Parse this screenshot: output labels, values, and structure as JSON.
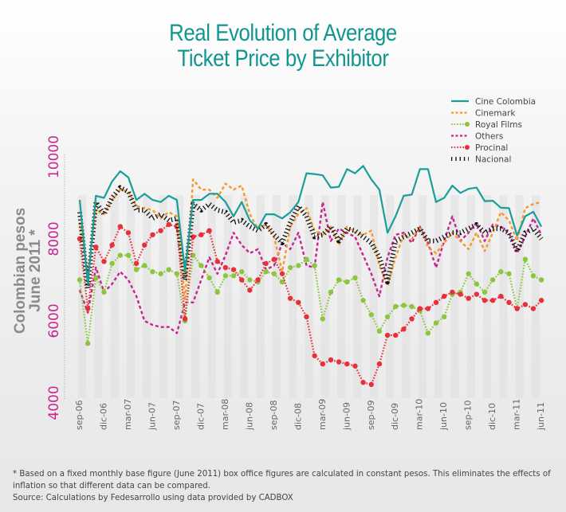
{
  "title": {
    "line1": "Real Evolution of Average",
    "line2": "Ticket Price by Exhibitor"
  },
  "footnote": {
    "line1": "* Based on a fixed monthly base figure (June 2011) box office figures are calculated in constant pesos. This eliminates the effects of",
    "line2": "inflation so that different data can be compared.",
    "source": "Source: Calculations by Fedesarrollo using data provided by CADBOX"
  },
  "colors": {
    "title": "#11968f",
    "tick_label": "#c8238f",
    "axis_title": "#8a8a8a",
    "cine_colombia": "#1a9e9a",
    "cinemark": "#f39a2b",
    "royal_films": "#8cc63f",
    "others": "#c8238f",
    "procinal": "#e8303a",
    "nacional": "#111111"
  },
  "chart_data": {
    "type": "line",
    "title": "Real Evolution of Average Ticket Price by Exhibitor",
    "xlabel": "",
    "ylabel": "Colombian pesos June 2011 *",
    "ylabel_lines": [
      "Colombian pesos",
      "June 2011 *"
    ],
    "ylim": [
      4000,
      10000
    ],
    "yticks": [
      "4000",
      "6000",
      "8000",
      "10000"
    ],
    "ytick_values": [
      4000,
      6000,
      8000,
      10000
    ],
    "legend_position": "top-right",
    "grid": false,
    "x": [
      "sep-06",
      "oct-06",
      "nov-06",
      "dic-06",
      "ene-07",
      "feb-07",
      "mar-07",
      "abr-07",
      "may-07",
      "jun-07",
      "jul-07",
      "ago-07",
      "sep-07",
      "oct-07",
      "nov-07",
      "dic-07",
      "ene-08",
      "feb-08",
      "mar-08",
      "abr-08",
      "may-08",
      "jun-08",
      "jul-08",
      "ago-08",
      "sep-08",
      "oct-08",
      "nov-08",
      "dic-08",
      "ene-09",
      "feb-09",
      "mar-09",
      "abr-09",
      "may-09",
      "jun-09",
      "jul-09",
      "ago-09",
      "sep-09",
      "oct-09",
      "nov-09",
      "dic-09",
      "ene-10",
      "feb-10",
      "mar-10",
      "abr-10",
      "may-10",
      "jun-10",
      "jul-10",
      "ago-10",
      "sep-10",
      "oct-10",
      "nov-10",
      "dic-10",
      "ene-11",
      "feb-11",
      "mar-11",
      "abr-11",
      "may-11",
      "jun-11"
    ],
    "xtick_labels": [
      "sep-06",
      "dic-06",
      "mar-07",
      "jun-07",
      "sep-07",
      "dic-07",
      "mar-08",
      "jun-08",
      "sep-08",
      "dic-08",
      "mar-09",
      "jun-09",
      "sep-09",
      "dic-09",
      "mar-10",
      "jun-10",
      "sep-10",
      "dic-10",
      "mar-11",
      "jun-11"
    ],
    "series": [
      {
        "name": "Cine Colombia",
        "key": "cine_colombia",
        "style": "solid",
        "values": [
          8950,
          6900,
          9050,
          9000,
          9400,
          9650,
          9500,
          8950,
          9100,
          8950,
          8900,
          9050,
          8950,
          7200,
          8950,
          8950,
          9100,
          9100,
          8900,
          8550,
          8900,
          8450,
          8250,
          8600,
          8600,
          8500,
          8650,
          8900,
          9600,
          9580,
          9550,
          9250,
          9270,
          9700,
          9600,
          9780,
          9450,
          9200,
          8150,
          8550,
          9050,
          9080,
          9700,
          9700,
          8900,
          9000,
          9300,
          9120,
          9220,
          9250,
          8920,
          8930,
          8760,
          8750,
          8080,
          8550,
          8660,
          8300
        ]
      },
      {
        "name": "Cinemark",
        "key": "cinemark",
        "style": "dashed",
        "values": [
          8400,
          7100,
          8700,
          8600,
          8950,
          9200,
          9150,
          8800,
          8750,
          8700,
          8500,
          8650,
          8550,
          6500,
          9450,
          9200,
          9200,
          9000,
          9350,
          9200,
          9300,
          8600,
          8250,
          8350,
          8050,
          7200,
          8300,
          8600,
          8750,
          8200,
          8100,
          8300,
          7850,
          8300,
          8150,
          8100,
          8200,
          7350,
          6850,
          7550,
          8100,
          8000,
          8300,
          7800,
          7650,
          7900,
          8150,
          7950,
          7750,
          8150,
          7700,
          8150,
          8650,
          8450,
          7950,
          8750,
          8850,
          8900
        ]
      },
      {
        "name": "Royal Films",
        "key": "royal_films",
        "style": "dotted-markers",
        "values": [
          7000,
          5450,
          7050,
          6700,
          7400,
          7600,
          7600,
          7250,
          7350,
          7200,
          7150,
          7250,
          7150,
          6000,
          7600,
          7350,
          7050,
          6700,
          7100,
          7100,
          7200,
          7000,
          6950,
          7200,
          7150,
          6950,
          7300,
          7350,
          7500,
          7350,
          6050,
          6700,
          7000,
          6950,
          7050,
          6500,
          6150,
          5750,
          6100,
          6350,
          6380,
          6350,
          6250,
          5700,
          5950,
          6100,
          6650,
          6700,
          7150,
          6900,
          6700,
          7000,
          7200,
          7150,
          6300,
          7500,
          7100,
          7000
        ]
      },
      {
        "name": "Others",
        "key": "others",
        "style": "dashed",
        "values": [
          6750,
          6200,
          7300,
          6700,
          6900,
          7200,
          7000,
          6600,
          6000,
          5900,
          5850,
          5850,
          5700,
          6450,
          6450,
          7000,
          7550,
          7150,
          7600,
          8150,
          7850,
          7650,
          7750,
          7250,
          7350,
          7900,
          7750,
          8150,
          7350,
          7300,
          8900,
          7950,
          8250,
          8150,
          8050,
          7600,
          7150,
          6600,
          7550,
          8100,
          8150,
          7900,
          8300,
          7900,
          7300,
          7950,
          8550,
          7950,
          8150,
          8400,
          7950,
          8350,
          8300,
          8150,
          7650,
          8050,
          8500,
          8100
        ]
      },
      {
        "name": "Procinal",
        "key": "procinal",
        "style": "dotted-markers",
        "values": [
          8000,
          6300,
          7800,
          7450,
          7850,
          8300,
          8150,
          7400,
          7850,
          8100,
          8200,
          8350,
          8300,
          6050,
          8050,
          8100,
          8200,
          7450,
          7300,
          7250,
          7000,
          6750,
          7000,
          7400,
          7500,
          7150,
          6550,
          6450,
          6100,
          5150,
          4950,
          5050,
          5000,
          4950,
          4900,
          4500,
          4450,
          4950,
          5650,
          5650,
          5800,
          6050,
          6300,
          6300,
          6450,
          6600,
          6700,
          6650,
          6550,
          6650,
          6500,
          6500,
          6600,
          6450,
          6300,
          6400,
          6300,
          6500
        ]
      },
      {
        "name": "Nacional",
        "key": "nacional",
        "style": "tick-marks",
        "values": [
          8650,
          6800,
          8900,
          8600,
          9000,
          9250,
          9150,
          8700,
          8700,
          8500,
          8600,
          8450,
          8500,
          7000,
          8850,
          8700,
          8850,
          8700,
          8650,
          8400,
          8450,
          8300,
          8200,
          8350,
          8100,
          7900,
          8400,
          8800,
          8550,
          8050,
          8100,
          8300,
          7950,
          8250,
          8200,
          8050,
          7900,
          7550,
          6950,
          7950,
          8050,
          8150,
          8250,
          7950,
          7950,
          8050,
          8150,
          8150,
          8250,
          8350,
          8150,
          8250,
          8250,
          8150,
          7700,
          8150,
          8250,
          8000
        ]
      }
    ]
  }
}
